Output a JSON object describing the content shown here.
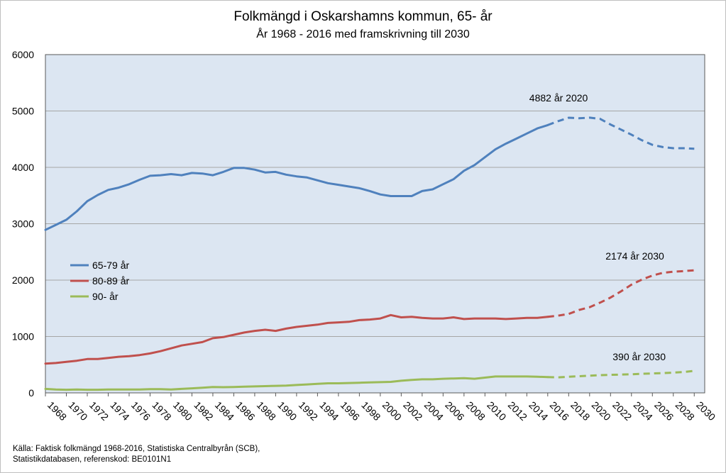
{
  "header": {
    "title": "Folkmängd i Oskarshamns kommun, 65- år",
    "subtitle": "År 1968 - 2016 med framskrivning till 2030"
  },
  "footer": {
    "source_line1": "Källa: Faktisk folkmängd 1968-2016, Statistiska Centralbyrån (SCB),",
    "source_line2": "Statistikdatabasen, referenskod: BE0101N1"
  },
  "chart_data": {
    "type": "line",
    "title": "Folkmängd i Oskarshamns kommun, 65- år",
    "subtitle": "År 1968 - 2016 med framskrivning till 2030",
    "xlabel": "",
    "ylabel": "",
    "ylim": [
      0,
      6000
    ],
    "yticks": [
      0,
      1000,
      2000,
      3000,
      4000,
      5000,
      6000
    ],
    "xlim": [
      1968,
      2030
    ],
    "xticks": [
      "1968",
      "1970",
      "1972",
      "1974",
      "1976",
      "1978",
      "1980",
      "1982",
      "1984",
      "1986",
      "1988",
      "1990",
      "1992",
      "1994",
      "1996",
      "1998",
      "2000",
      "2002",
      "2004",
      "2006",
      "2008",
      "2010",
      "2012",
      "2014",
      "2016",
      "2018",
      "2020",
      "2022",
      "2024",
      "2026",
      "2028",
      "2030"
    ],
    "grid": "horizontal",
    "plot_background": "#dce6f2",
    "legend_position": "left",
    "actual_period": [
      1968,
      2016
    ],
    "projection_period": [
      2016,
      2030
    ],
    "projection_style": "dashed",
    "x": [
      1968,
      1969,
      1970,
      1971,
      1972,
      1973,
      1974,
      1975,
      1976,
      1977,
      1978,
      1979,
      1980,
      1981,
      1982,
      1983,
      1984,
      1985,
      1986,
      1987,
      1988,
      1989,
      1990,
      1991,
      1992,
      1993,
      1994,
      1995,
      1996,
      1997,
      1998,
      1999,
      2000,
      2001,
      2002,
      2003,
      2004,
      2005,
      2006,
      2007,
      2008,
      2009,
      2010,
      2011,
      2012,
      2013,
      2014,
      2015,
      2016,
      2017,
      2018,
      2019,
      2020,
      2021,
      2022,
      2023,
      2024,
      2025,
      2026,
      2027,
      2028,
      2029,
      2030
    ],
    "series": [
      {
        "name": "65-79 år",
        "color": "#4f81bd",
        "values": [
          2890,
          2980,
          3070,
          3220,
          3400,
          3510,
          3600,
          3640,
          3700,
          3780,
          3850,
          3860,
          3880,
          3860,
          3900,
          3890,
          3860,
          3920,
          3990,
          3990,
          3960,
          3910,
          3920,
          3870,
          3840,
          3820,
          3770,
          3720,
          3690,
          3660,
          3630,
          3580,
          3520,
          3490,
          3490,
          3490,
          3580,
          3610,
          3700,
          3790,
          3940,
          4040,
          4180,
          4320,
          4420,
          4510,
          4600,
          4690,
          4750,
          4820,
          4880,
          4870,
          4882,
          4860,
          4760,
          4670,
          4580,
          4480,
          4400,
          4360,
          4340,
          4340,
          4330
        ]
      },
      {
        "name": "80-89 år",
        "color": "#c0504d",
        "values": [
          520,
          530,
          550,
          570,
          600,
          600,
          620,
          640,
          650,
          670,
          700,
          740,
          790,
          840,
          870,
          900,
          970,
          990,
          1030,
          1070,
          1100,
          1120,
          1100,
          1140,
          1170,
          1190,
          1210,
          1240,
          1250,
          1260,
          1290,
          1300,
          1320,
          1380,
          1340,
          1350,
          1330,
          1320,
          1320,
          1340,
          1310,
          1320,
          1320,
          1320,
          1310,
          1320,
          1330,
          1330,
          1350,
          1370,
          1400,
          1470,
          1520,
          1600,
          1690,
          1800,
          1920,
          2010,
          2080,
          2130,
          2150,
          2160,
          2174
        ]
      },
      {
        "name": "90- år",
        "color": "#9bbb59",
        "values": [
          70,
          60,
          55,
          60,
          55,
          55,
          60,
          60,
          60,
          60,
          65,
          65,
          60,
          70,
          80,
          90,
          105,
          100,
          105,
          110,
          115,
          120,
          125,
          130,
          140,
          150,
          160,
          170,
          170,
          175,
          180,
          185,
          190,
          195,
          215,
          230,
          240,
          240,
          250,
          255,
          260,
          250,
          270,
          290,
          290,
          290,
          290,
          285,
          280,
          275,
          285,
          295,
          305,
          315,
          320,
          325,
          330,
          340,
          345,
          350,
          360,
          370,
          390
        ]
      }
    ],
    "annotations": [
      {
        "text": "4882 år 2020",
        "x": 2020,
        "y": 4882,
        "series": "65-79 år"
      },
      {
        "text": "2174 år 2030",
        "x": 2030,
        "y": 2174,
        "series": "80-89 år"
      },
      {
        "text": "390 år 2030",
        "x": 2030,
        "y": 390,
        "series": "90- år"
      }
    ]
  }
}
